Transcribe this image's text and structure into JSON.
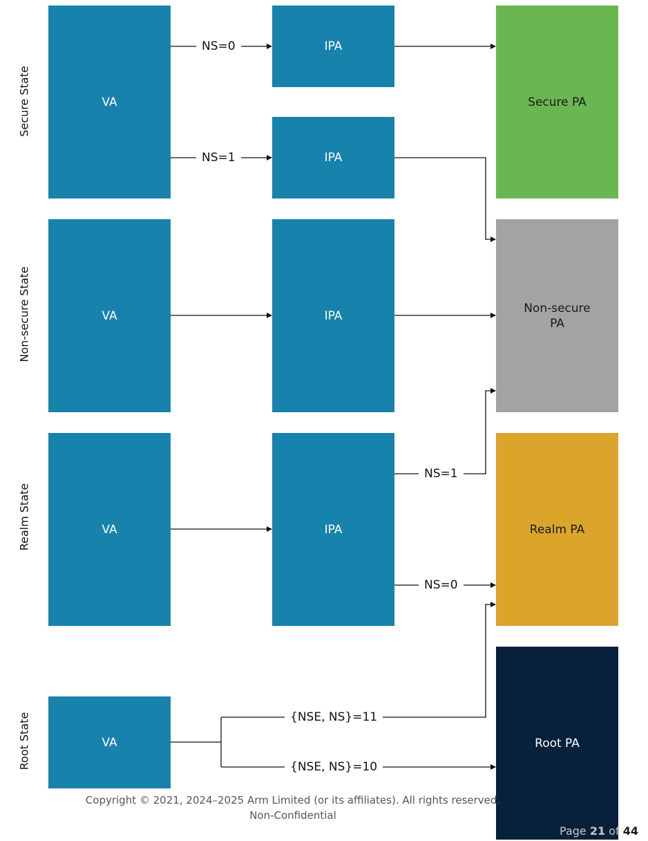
{
  "states": {
    "secure": "Secure State",
    "non_secure": "Non-secure State",
    "realm": "Realm State",
    "root": "Root State"
  },
  "nodes": {
    "va": "VA",
    "ipa": "IPA",
    "secure_pa": "Secure PA",
    "non_secure_pa_line1": "Non-secure",
    "non_secure_pa_line2": "PA",
    "realm_pa": "Realm PA",
    "root_pa": "Root PA"
  },
  "edges": {
    "ns0": "NS=0",
    "ns1": "NS=1",
    "nse_ns_11": "{NSE, NS}=11",
    "nse_ns_10": "{NSE, NS}=10"
  },
  "colors": {
    "translation_block": "#1783ad",
    "secure_pa": "#6ab651",
    "non_secure_pa": "#a3a3a3",
    "realm_pa": "#dba42b",
    "root_pa": "#07213b"
  },
  "footer": {
    "copyright": "Copyright © 2021, 2024–2025 Arm Limited (or its affiliates). All rights reserved.",
    "confidentiality": "Non-Confidential",
    "page_word": "Page",
    "page_current": "21",
    "page_of": "of",
    "page_total": "44"
  }
}
